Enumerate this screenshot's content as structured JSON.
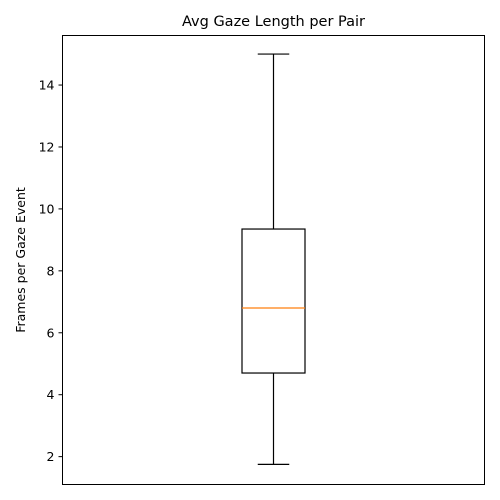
{
  "chart_data": {
    "type": "box",
    "title": "Avg Gaze Length per Pair",
    "xlabel": "",
    "ylabel": "Frames per Gaze Event",
    "ylim": [
      1.1,
      15.6
    ],
    "yticks": [
      2,
      4,
      6,
      8,
      10,
      12,
      14
    ],
    "grid": false,
    "boxes": [
      {
        "whisker_low": 1.75,
        "q1": 4.7,
        "median": 6.8,
        "q3": 9.35,
        "whisker_high": 15.0
      }
    ],
    "colors": {
      "box": "#000000",
      "median": "#ff7f0e"
    }
  }
}
